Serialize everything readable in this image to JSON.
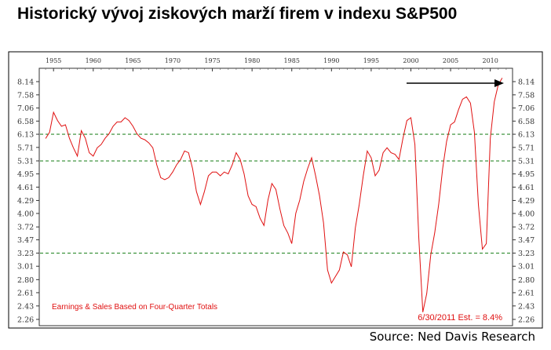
{
  "title": "Historický vývoj ziskových marží firem v indexu S&P500",
  "source": "Source: Ned Davis Research",
  "chart_data": {
    "type": "line",
    "x_tick_labels": [
      "1955",
      "1960",
      "1965",
      "1970",
      "1975",
      "1980",
      "1985",
      "1990",
      "1995",
      "2000",
      "2005",
      "2010"
    ],
    "y_tick_labels": [
      "8.14",
      "7.58",
      "7.06",
      "6.58",
      "6.13",
      "5.71",
      "5.31",
      "4.95",
      "4.61",
      "4.29",
      "4.00",
      "3.72",
      "3.47",
      "3.23",
      "3.01",
      "2.80",
      "2.61",
      "2.43",
      "2.26"
    ],
    "xlim": [
      1953.2,
      2012.8
    ],
    "ylim": [
      2.26,
      8.14
    ],
    "y_scale": "log",
    "reference_lines": [
      6.13,
      5.31,
      3.23
    ],
    "annotations": {
      "note": "Earnings & Sales Based on Four-Quarter Totals",
      "estimate": "6/30/2011 Est. = 8.4%"
    },
    "colors": {
      "line": "#e01010",
      "reference": "#2e8b2e",
      "arrow": "#000000",
      "annotation": "#e01010"
    },
    "series": [
      {
        "x": [
          1954.0,
          1954.5,
          1955.0,
          1955.5,
          1956.0,
          1956.5,
          1957.0,
          1957.5,
          1958.0,
          1958.5,
          1959.0,
          1959.5,
          1960.0,
          1960.5,
          1961.0,
          1961.5,
          1962.0,
          1962.5,
          1963.0,
          1963.5,
          1964.0,
          1964.5,
          1965.0,
          1965.5,
          1966.0,
          1966.5,
          1967.0,
          1967.5,
          1968.0,
          1968.5,
          1969.0,
          1969.5,
          1970.0,
          1970.5,
          1971.0,
          1971.5,
          1972.0,
          1972.5,
          1973.0,
          1973.5,
          1974.0,
          1974.5,
          1975.0,
          1975.5,
          1976.0,
          1976.5,
          1977.0,
          1977.5,
          1978.0,
          1978.5,
          1979.0,
          1979.5,
          1980.0,
          1980.5,
          1981.0,
          1981.5,
          1982.0,
          1982.5,
          1983.0,
          1983.5,
          1984.0,
          1984.5,
          1985.0,
          1985.5,
          1986.0,
          1986.5,
          1987.0,
          1987.5,
          1988.0,
          1988.5,
          1989.0,
          1989.5,
          1990.0,
          1990.5,
          1991.0,
          1991.5,
          1992.0,
          1992.5,
          1993.0,
          1993.5,
          1994.0,
          1994.5,
          1995.0,
          1995.5,
          1996.0,
          1996.5,
          1997.0,
          1997.5,
          1998.0,
          1998.5,
          1999.0,
          1999.5,
          2000.0,
          2000.5,
          2001.0,
          2001.5,
          2002.0,
          2002.5,
          2003.0,
          2003.5,
          2004.0,
          2004.5,
          2005.0,
          2005.5,
          2006.0,
          2006.5,
          2007.0,
          2007.5,
          2008.0,
          2008.5,
          2009.0,
          2009.5,
          2010.0,
          2010.5,
          2011.0,
          2011.5
        ],
        "y": [
          5.99,
          6.2,
          6.9,
          6.6,
          6.4,
          6.45,
          6.0,
          5.7,
          5.45,
          6.25,
          6.0,
          5.55,
          5.45,
          5.7,
          5.8,
          6.0,
          6.15,
          6.4,
          6.55,
          6.55,
          6.7,
          6.6,
          6.4,
          6.15,
          6.0,
          5.95,
          5.85,
          5.7,
          5.2,
          4.85,
          4.8,
          4.85,
          5.0,
          5.2,
          5.35,
          5.6,
          5.55,
          5.1,
          4.5,
          4.2,
          4.5,
          4.9,
          5.0,
          5.0,
          4.9,
          5.0,
          4.95,
          5.2,
          5.55,
          5.35,
          4.95,
          4.4,
          4.2,
          4.15,
          3.9,
          3.75,
          4.3,
          4.7,
          4.55,
          4.1,
          3.75,
          3.6,
          3.4,
          4.0,
          4.3,
          4.75,
          5.1,
          5.4,
          4.9,
          4.4,
          3.8,
          2.95,
          2.75,
          2.85,
          2.95,
          3.25,
          3.2,
          3.0,
          3.7,
          4.2,
          4.9,
          5.6,
          5.4,
          4.9,
          5.05,
          5.55,
          5.7,
          5.55,
          5.5,
          5.35,
          6.0,
          6.6,
          6.7,
          5.8,
          3.5,
          2.35,
          2.6,
          3.2,
          3.6,
          4.2,
          5.1,
          5.9,
          6.45,
          6.55,
          7.0,
          7.4,
          7.5,
          7.25,
          6.2,
          4.2,
          3.3,
          3.4,
          6.0,
          7.3,
          8.0,
          8.3
        ]
      }
    ]
  }
}
